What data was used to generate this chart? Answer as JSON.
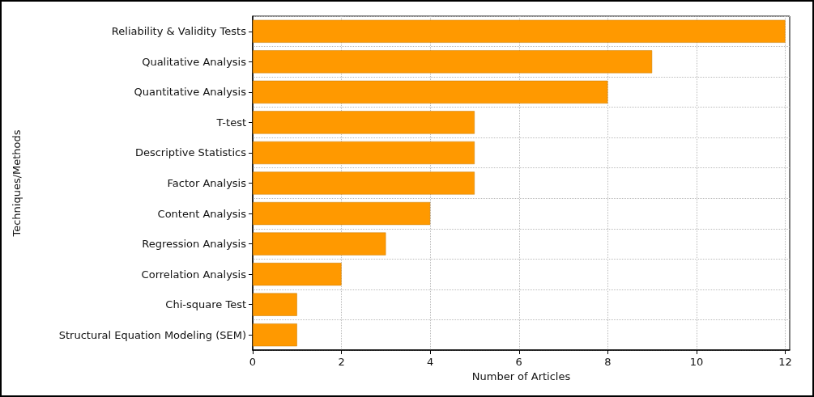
{
  "chart_data": {
    "type": "bar",
    "orientation": "horizontal",
    "xlabel": "Number of Articles",
    "ylabel": "Techniques/Methods",
    "categories": [
      "Reliability & Validity Tests",
      "Qualitative Analysis",
      "Quantitative Analysis",
      "T-test",
      "Descriptive Statistics",
      "Factor Analysis",
      "Content Analysis",
      "Regression Analysis",
      "Correlation Analysis",
      "Chi-square Test",
      "Structural Equation Modeling (SEM)"
    ],
    "values": [
      12,
      9,
      8,
      5,
      5,
      5,
      4,
      3,
      2,
      1,
      1
    ],
    "color": "#ff9900",
    "xlim": [
      0,
      12.1
    ],
    "xticks": [
      0,
      2,
      4,
      6,
      8,
      10,
      12
    ],
    "grid": true
  }
}
